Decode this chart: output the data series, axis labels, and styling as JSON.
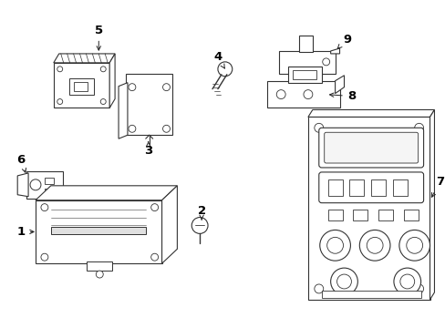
{
  "bg_color": "#ffffff",
  "line_color": "#333333",
  "label_color": "#000000",
  "figsize": [
    4.89,
    3.6
  ],
  "dpi": 100
}
